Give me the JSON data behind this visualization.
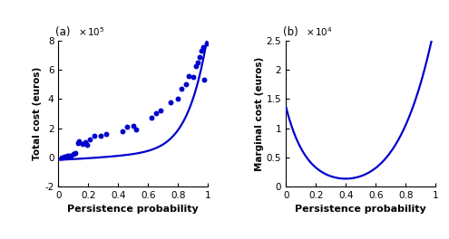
{
  "panel_a": {
    "label": "(a)",
    "xlabel": "Persistence probability",
    "ylabel": "Total cost (euros)",
    "ylim": [
      -200000.0,
      800000.0
    ],
    "xlim": [
      0,
      1
    ],
    "ytick_vals": [
      -200000,
      0,
      200000,
      400000,
      600000,
      800000
    ],
    "ytick_labels": [
      "-2",
      "0",
      "2",
      "4",
      "6",
      "8"
    ],
    "xtick_vals": [
      0,
      0.2,
      0.4,
      0.6,
      0.8,
      1.0
    ],
    "xtick_labels": [
      "0",
      "0.2",
      "0.4",
      "0.6",
      "0.8",
      "1"
    ],
    "color": "#0000cc",
    "scatter_x": [
      0.02,
      0.04,
      0.06,
      0.07,
      0.08,
      0.1,
      0.11,
      0.13,
      0.14,
      0.16,
      0.18,
      0.19,
      0.21,
      0.24,
      0.28,
      0.32,
      0.43,
      0.46,
      0.5,
      0.52,
      0.62,
      0.65,
      0.68,
      0.75,
      0.8,
      0.82,
      0.85,
      0.87,
      0.9,
      0.92,
      0.93,
      0.945,
      0.955,
      0.965,
      0.975,
      0.99
    ],
    "scatter_y": [
      0.0,
      4000.0,
      8000.0,
      10000.0,
      8000.0,
      25000.0,
      30000.0,
      100000.0,
      110000.0,
      90000.0,
      105000.0,
      85000.0,
      120000.0,
      145000.0,
      150000.0,
      160000.0,
      180000.0,
      210000.0,
      215000.0,
      190000.0,
      270000.0,
      300000.0,
      320000.0,
      380000.0,
      400000.0,
      470000.0,
      500000.0,
      560000.0,
      550000.0,
      625000.0,
      650000.0,
      690000.0,
      730000.0,
      755000.0,
      535000.0,
      780000.0
    ]
  },
  "panel_b": {
    "label": "(b)",
    "xlabel": "Persistence probability",
    "ylabel": "Marginal cost (euros)",
    "ylim": [
      0,
      25000.0
    ],
    "xlim": [
      0,
      1
    ],
    "ytick_vals": [
      0,
      5000,
      10000,
      15000,
      20000,
      25000
    ],
    "ytick_labels": [
      "0",
      "0.5",
      "1",
      "1.5",
      "2",
      "2.5"
    ],
    "xtick_vals": [
      0,
      0.2,
      0.4,
      0.6,
      0.8,
      1.0
    ],
    "xtick_labels": [
      "0",
      "0.2",
      "0.4",
      "0.6",
      "0.8",
      "1"
    ],
    "color": "#0000cc"
  },
  "line_color": "#0000cc",
  "line_width": 1.6,
  "scatter_size": 18,
  "xlabel_fontsize": 8,
  "ylabel_fontsize": 7.5,
  "tick_fontsize": 7.5,
  "label_fontsize": 8.5
}
